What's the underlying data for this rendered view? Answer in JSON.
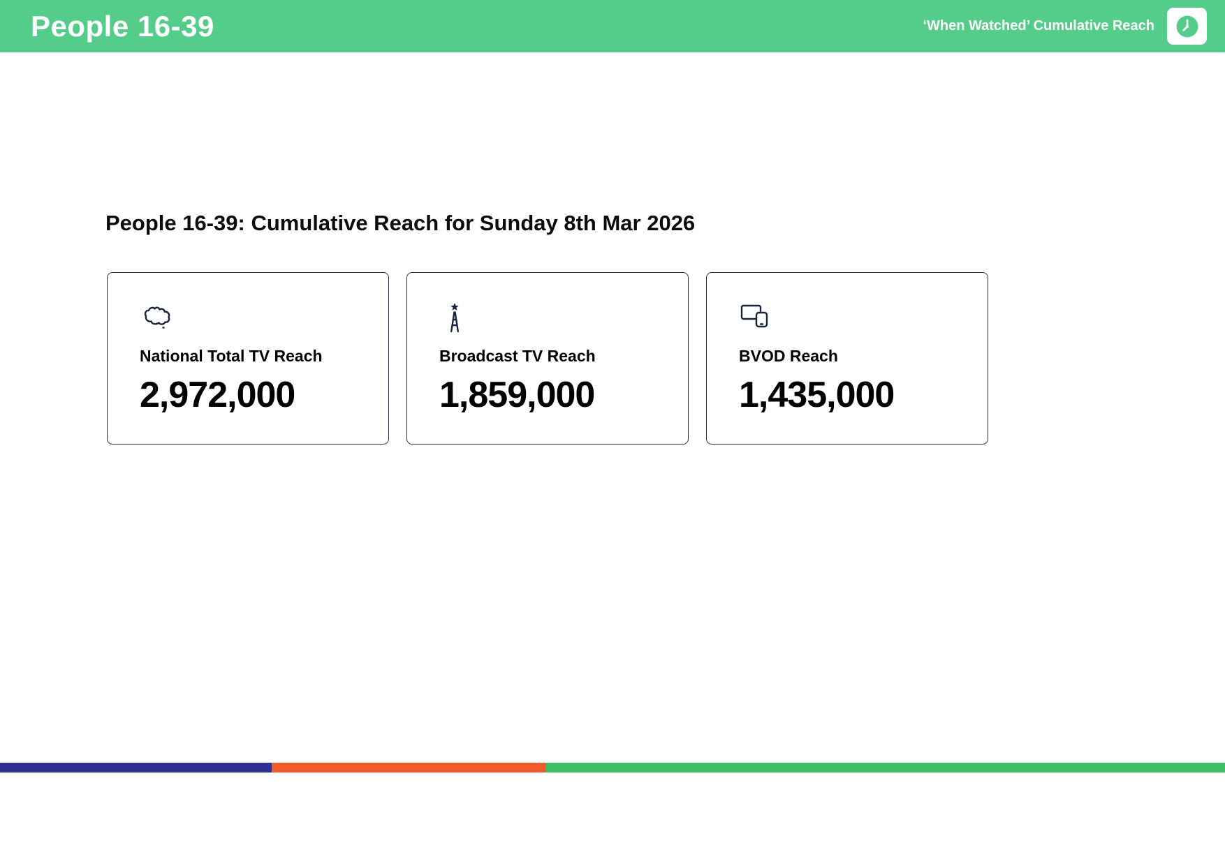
{
  "header": {
    "title": "People 16-39",
    "subtitle": "‘When Watched’ Cumulative Reach",
    "bg_color": "#53cd89",
    "icon": "clock-icon"
  },
  "main": {
    "heading": "People 16-39: Cumulative Reach for Sunday 8th Mar 2026",
    "cards": [
      {
        "icon": "australia-map-icon",
        "label": "National Total TV Reach",
        "value": "2,972,000"
      },
      {
        "icon": "broadcast-tower-icon",
        "label": "Broadcast TV Reach",
        "value": "1,859,000"
      },
      {
        "icon": "devices-icon",
        "label": "BVOD Reach",
        "value": "1,435,000"
      }
    ]
  },
  "footer": {
    "segments": [
      {
        "name": "navy",
        "color": "#2e3192",
        "width_pct": 22.2
      },
      {
        "name": "orange",
        "color": "#f15b2b",
        "width_pct": 22.4
      },
      {
        "name": "green",
        "color": "#3dbd64",
        "width_pct": 55.4
      }
    ]
  }
}
